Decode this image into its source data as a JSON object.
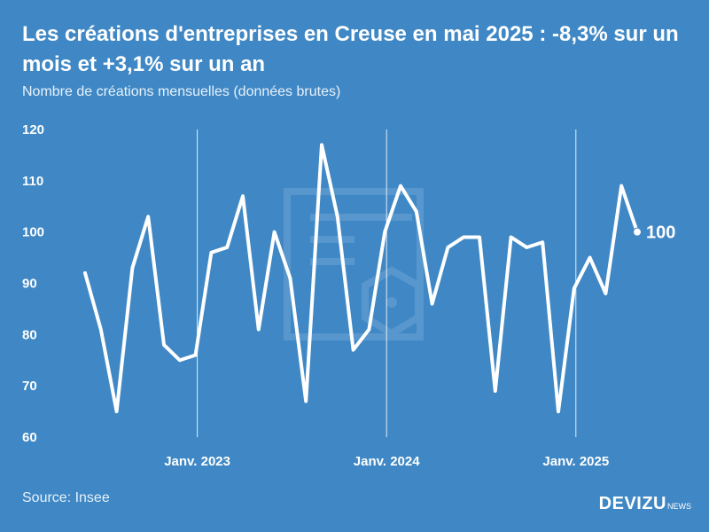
{
  "header": {
    "title": "Les créations d'entreprises en Creuse en mai 2025 : -8,3% sur un mois et +3,1% sur un an",
    "subtitle": "Nombre de créations mensuelles (données brutes)"
  },
  "footer": {
    "source": "Source: Insee",
    "brand": "DEVIZU",
    "brand_suffix": "NEWS"
  },
  "colors": {
    "background": "#3f88c5",
    "line": "#ffffff",
    "watermark": "#78abd8"
  },
  "watermark_icon": "devizu-logo-watermark",
  "chart_data": {
    "type": "line",
    "title": "Les créations d'entreprises en Creuse en mai 2025 : -8,3% sur un mois et +3,1% sur un an",
    "subtitle": "Nombre de créations mensuelles (données brutes)",
    "xlabel": "",
    "ylabel": "",
    "ylim": [
      60,
      120
    ],
    "yticks": [
      "120",
      "110",
      "100",
      "90",
      "80",
      "70",
      "60"
    ],
    "grid": "vertical lines at January markers",
    "x_tick_labels": [
      "Janv. 2023",
      "Janv. 2024",
      "Janv. 2025"
    ],
    "x_tick_index": [
      7,
      19,
      31
    ],
    "x": [
      "2022-06",
      "2022-07",
      "2022-08",
      "2022-09",
      "2022-10",
      "2022-11",
      "2022-12",
      "2023-01",
      "2023-02",
      "2023-03",
      "2023-04",
      "2023-05",
      "2023-06",
      "2023-07",
      "2023-08",
      "2023-09",
      "2023-10",
      "2023-11",
      "2023-12",
      "2024-01",
      "2024-02",
      "2024-03",
      "2024-04",
      "2024-05",
      "2024-06",
      "2024-07",
      "2024-08",
      "2024-09",
      "2024-10",
      "2024-11",
      "2024-12",
      "2025-01",
      "2025-02",
      "2025-03",
      "2025-04",
      "2025-05"
    ],
    "series": [
      {
        "values": [
          92,
          81,
          65,
          93,
          103,
          78,
          75,
          76,
          96,
          97,
          107,
          81,
          100,
          91,
          67,
          117,
          103,
          77,
          81,
          100,
          109,
          104,
          86,
          97,
          99,
          99,
          69,
          99,
          97,
          98,
          65,
          89,
          95,
          88,
          109,
          100
        ]
      }
    ],
    "end_label": "100"
  }
}
